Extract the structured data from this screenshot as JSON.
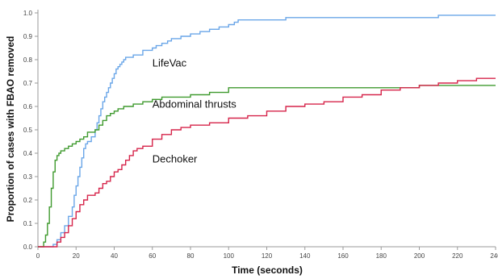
{
  "chart_data": {
    "type": "line",
    "title": "",
    "xlabel": "Time (seconds)",
    "ylabel": "Proportion of cases with FBAO removed",
    "xlim": [
      0,
      240
    ],
    "ylim": [
      0,
      1
    ],
    "x_ticks": [
      0,
      20,
      40,
      60,
      80,
      100,
      120,
      140,
      160,
      180,
      200,
      220,
      240
    ],
    "y_ticks": [
      0.0,
      0.1,
      0.2,
      0.3,
      0.4,
      0.5,
      0.6,
      0.7,
      0.8,
      0.9,
      1.0
    ],
    "x_tick_labels": [
      "0",
      "20",
      "40",
      "60",
      "80",
      "100",
      "120",
      "140",
      "160",
      "180",
      "200",
      "220",
      "240"
    ],
    "y_tick_labels": [
      "0.0",
      "0.1",
      "0.2",
      "0.3",
      "0.4",
      "0.5",
      "0.6",
      "0.7",
      "0.8",
      "0.9",
      "1.0"
    ],
    "grid": false,
    "step": true,
    "series": [
      {
        "name": "LifeVac",
        "color": "#6aa6e8",
        "label_at": [
          60,
          0.77
        ],
        "x": [
          0,
          8,
          10,
          12,
          14,
          16,
          18,
          19,
          20,
          21,
          22,
          23,
          24,
          25,
          26,
          28,
          30,
          31,
          32,
          33,
          34,
          35,
          36,
          37,
          38,
          39,
          40,
          41,
          42,
          43,
          44,
          45,
          46,
          48,
          50,
          55,
          60,
          62,
          65,
          68,
          70,
          72,
          75,
          80,
          85,
          90,
          95,
          100,
          103,
          105,
          110,
          120,
          130,
          140,
          160,
          180,
          200,
          210,
          220,
          240
        ],
        "y": [
          0,
          0.01,
          0.03,
          0.06,
          0.09,
          0.13,
          0.17,
          0.22,
          0.26,
          0.3,
          0.34,
          0.38,
          0.42,
          0.44,
          0.45,
          0.47,
          0.5,
          0.53,
          0.56,
          0.59,
          0.62,
          0.64,
          0.66,
          0.68,
          0.7,
          0.72,
          0.74,
          0.76,
          0.77,
          0.78,
          0.79,
          0.8,
          0.81,
          0.81,
          0.82,
          0.84,
          0.85,
          0.86,
          0.87,
          0.88,
          0.89,
          0.89,
          0.9,
          0.91,
          0.92,
          0.93,
          0.94,
          0.95,
          0.96,
          0.97,
          0.97,
          0.97,
          0.98,
          0.98,
          0.98,
          0.98,
          0.98,
          0.99,
          0.99,
          0.99
        ]
      },
      {
        "name": "Abdominal thrusts",
        "color": "#3f9a2e",
        "label_at": [
          60,
          0.595
        ],
        "x": [
          0,
          3,
          4,
          5,
          6,
          7,
          8,
          9,
          10,
          11,
          12,
          14,
          16,
          18,
          20,
          22,
          24,
          26,
          28,
          30,
          32,
          34,
          36,
          38,
          40,
          42,
          45,
          50,
          55,
          60,
          65,
          70,
          80,
          90,
          100,
          120,
          140,
          160,
          180,
          200,
          240
        ],
        "y": [
          0,
          0.02,
          0.05,
          0.1,
          0.17,
          0.25,
          0.32,
          0.37,
          0.39,
          0.4,
          0.41,
          0.42,
          0.43,
          0.44,
          0.45,
          0.46,
          0.47,
          0.49,
          0.49,
          0.5,
          0.52,
          0.54,
          0.56,
          0.57,
          0.58,
          0.59,
          0.6,
          0.61,
          0.62,
          0.63,
          0.64,
          0.64,
          0.65,
          0.66,
          0.68,
          0.68,
          0.68,
          0.68,
          0.68,
          0.69,
          0.69
        ]
      },
      {
        "name": "Dechoker",
        "color": "#d6244a",
        "label_at": [
          60,
          0.36
        ],
        "x": [
          0,
          10,
          12,
          14,
          16,
          18,
          20,
          22,
          24,
          26,
          28,
          30,
          32,
          34,
          36,
          38,
          40,
          42,
          44,
          46,
          48,
          50,
          52,
          55,
          60,
          65,
          70,
          75,
          80,
          90,
          100,
          110,
          120,
          130,
          140,
          150,
          160,
          170,
          180,
          190,
          200,
          210,
          220,
          230,
          240
        ],
        "y": [
          0,
          0.02,
          0.04,
          0.06,
          0.09,
          0.12,
          0.15,
          0.18,
          0.2,
          0.22,
          0.22,
          0.23,
          0.25,
          0.27,
          0.28,
          0.3,
          0.32,
          0.33,
          0.35,
          0.37,
          0.39,
          0.41,
          0.42,
          0.43,
          0.46,
          0.48,
          0.5,
          0.51,
          0.52,
          0.53,
          0.55,
          0.56,
          0.58,
          0.6,
          0.61,
          0.62,
          0.64,
          0.65,
          0.67,
          0.68,
          0.69,
          0.7,
          0.71,
          0.72,
          0.72
        ]
      }
    ]
  }
}
